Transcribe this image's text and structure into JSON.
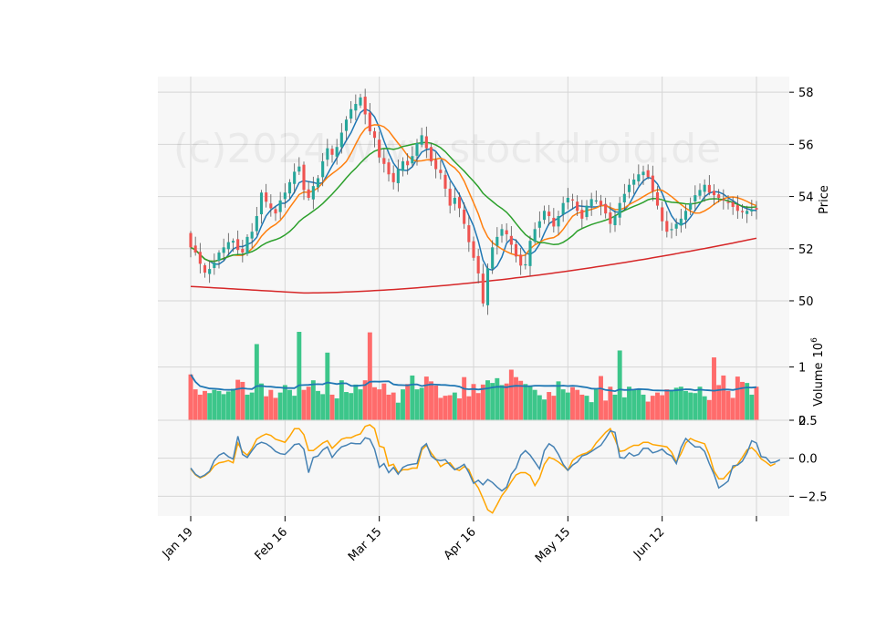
{
  "chart_data": {
    "type": "candlestick",
    "watermark": "(c)2024 www.stockdroid.de",
    "price_panel": {
      "ylabel": "Price",
      "ylim": [
        49.3,
        58.6
      ],
      "yticks": [
        50,
        52,
        54,
        56,
        58
      ],
      "moving_averages": [
        {
          "name": "MA5",
          "color": "#1f77b4"
        },
        {
          "name": "MA10",
          "color": "#ff7f0e"
        },
        {
          "name": "MA20",
          "color": "#2ca02c"
        },
        {
          "name": "MA100",
          "color": "#d62728"
        }
      ],
      "ma100_start": 50.55,
      "ma100_end": 52.4
    },
    "volume_panel": {
      "ylabel": "Volume",
      "yscale_label": "10",
      "yscale_exp": "6",
      "ylim": [
        0,
        1.9
      ],
      "yticks": [
        0,
        1
      ],
      "average_line_color": "#1f77b4",
      "up_color": "#26a69a",
      "down_color": "#ef5350"
    },
    "indicator_panel": {
      "ylim": [
        -3.8,
        2.5
      ],
      "yticks": [
        2.5,
        0.0,
        -2.5
      ],
      "ytick_labels": [
        "2.5",
        "0.0",
        "−2.5"
      ],
      "series": [
        {
          "name": "MACD",
          "color": "#4682b4"
        },
        {
          "name": "Signal",
          "color": "#ffa500"
        }
      ]
    },
    "x_axis": {
      "tick_labels": [
        "Jan 19",
        "Feb 16",
        "Mar 15",
        "Apr 16",
        "May 15",
        "Jun 12",
        ""
      ],
      "tick_index": [
        0,
        20,
        40,
        60,
        80,
        100,
        120
      ]
    },
    "closes": [
      52.05,
      51.85,
      51.42,
      51.08,
      51.22,
      51.47,
      51.85,
      52.05,
      52.25,
      52.3,
      51.95,
      51.85,
      52.45,
      52.65,
      53.25,
      54.15,
      53.8,
      53.55,
      53.35,
      53.85,
      54.15,
      54.55,
      54.95,
      55.15,
      54.25,
      53.95,
      54.4,
      54.7,
      55.35,
      55.85,
      55.6,
      55.9,
      56.45,
      56.95,
      57.35,
      57.55,
      57.8,
      57.15,
      56.5,
      56.25,
      55.5,
      55.25,
      54.85,
      54.55,
      55.05,
      55.35,
      55.2,
      55.55,
      56.05,
      56.35,
      55.85,
      55.35,
      55.05,
      54.9,
      54.3,
      53.65,
      53.95,
      53.55,
      52.95,
      52.25,
      51.65,
      51.05,
      49.9,
      51.25,
      52.05,
      52.45,
      52.75,
      52.55,
      52.15,
      51.7,
      51.35,
      51.4,
      52.3,
      52.75,
      53.05,
      53.45,
      53.25,
      52.85,
      53.25,
      53.75,
      53.95,
      53.85,
      53.45,
      53.15,
      53.65,
      53.9,
      53.85,
      53.65,
      53.35,
      52.95,
      53.25,
      53.75,
      54.1,
      54.45,
      54.65,
      54.85,
      54.95,
      54.75,
      54.2,
      53.65,
      53.05,
      52.65,
      52.75,
      52.95,
      53.15,
      53.45,
      53.75,
      54.05,
      54.25,
      54.45,
      54.15,
      54.05,
      53.95,
      53.85,
      53.75,
      53.6,
      53.45,
      53.4,
      53.45,
      53.5,
      53.5
    ],
    "volumes": [
      0.86,
      0.58,
      0.48,
      0.55,
      0.51,
      0.57,
      0.55,
      0.49,
      0.54,
      0.59,
      0.76,
      0.72,
      0.48,
      0.52,
      1.43,
      0.69,
      0.45,
      0.57,
      0.42,
      0.52,
      0.66,
      0.57,
      0.46,
      1.66,
      0.57,
      0.63,
      0.75,
      0.55,
      0.49,
      1.27,
      0.48,
      0.41,
      0.75,
      0.53,
      0.51,
      0.67,
      0.58,
      0.75,
      1.65,
      0.62,
      0.58,
      0.69,
      0.48,
      0.52,
      0.33,
      0.58,
      0.68,
      0.84,
      0.58,
      0.61,
      0.82,
      0.73,
      0.65,
      0.42,
      0.46,
      0.47,
      0.52,
      0.41,
      0.81,
      0.45,
      0.68,
      0.51,
      0.67,
      0.75,
      0.7,
      0.79,
      0.66,
      0.69,
      0.95,
      0.81,
      0.74,
      0.68,
      0.64,
      0.57,
      0.47,
      0.39,
      0.53,
      0.46,
      0.73,
      0.58,
      0.52,
      0.62,
      0.57,
      0.48,
      0.46,
      0.34,
      0.58,
      0.83,
      0.37,
      0.63,
      0.48,
      1.31,
      0.43,
      0.63,
      0.57,
      0.58,
      0.48,
      0.35,
      0.46,
      0.52,
      0.47,
      0.58,
      0.57,
      0.61,
      0.63,
      0.55,
      0.52,
      0.51,
      0.63,
      0.45,
      0.38,
      1.18,
      0.66,
      0.84,
      0.55,
      0.42,
      0.82,
      0.72,
      0.7,
      0.48,
      0.63
    ],
    "macd": [
      -0.65,
      -1.05,
      -1.25,
      -1.1,
      -0.85,
      -0.15,
      0.2,
      0.35,
      0.1,
      -0.05,
      1.45,
      0.25,
      0.05,
      0.5,
      0.9,
      1.05,
      0.95,
      0.75,
      0.45,
      0.3,
      0.25,
      0.55,
      0.9,
      0.95,
      0.6,
      -0.95,
      0.05,
      0.15,
      0.55,
      0.75,
      0.05,
      0.45,
      0.75,
      0.85,
      1.0,
      0.95,
      0.95,
      1.35,
      1.25,
      0.6,
      -0.6,
      -0.35,
      -0.95,
      -0.6,
      -1.05,
      -0.6,
      -0.45,
      -0.4,
      -0.35,
      0.7,
      0.95,
      0.15,
      -0.1,
      -0.15,
      -0.1,
      -0.45,
      -0.75,
      -0.6,
      -0.4,
      -0.95,
      -1.65,
      -1.45,
      -1.75,
      -1.4,
      -1.6,
      -1.9,
      -2.15,
      -1.9,
      -1.05,
      -0.65,
      0.2,
      0.5,
      0.2,
      -0.25,
      -0.7,
      0.5,
      0.95,
      0.75,
      0.25,
      -0.4,
      -0.8,
      -0.45,
      -0.25,
      0.15,
      0.25,
      0.45,
      0.65,
      0.85,
      1.3,
      1.8,
      1.7,
      0.05,
      0.0,
      0.35,
      0.15,
      0.25,
      0.65,
      0.65,
      0.35,
      0.45,
      0.6,
      0.3,
      0.15,
      -0.35,
      0.7,
      1.3,
      1.0,
      0.75,
      0.75,
      0.45,
      -0.35,
      -1.05,
      -1.95,
      -1.75,
      -1.5,
      -0.5,
      -0.45,
      -0.2,
      0.35,
      1.15,
      1.0,
      0.1,
      0.05,
      -0.3,
      -0.25,
      -0.1
    ],
    "signal": [
      -0.7,
      -1.1,
      -1.3,
      -1.15,
      -0.9,
      -0.5,
      -0.3,
      -0.25,
      -0.15,
      -0.3,
      1.0,
      0.45,
      0.2,
      0.65,
      1.25,
      1.45,
      1.6,
      1.5,
      1.25,
      1.15,
      1.05,
      1.45,
      1.95,
      1.95,
      1.55,
      0.5,
      0.5,
      0.75,
      1.0,
      1.15,
      0.65,
      0.95,
      1.25,
      1.35,
      1.35,
      1.5,
      1.6,
      2.1,
      2.2,
      1.95,
      0.8,
      0.7,
      -0.5,
      -0.4,
      -0.95,
      -0.75,
      -0.75,
      -0.65,
      -0.65,
      0.55,
      0.85,
      0.35,
      -0.05,
      -0.55,
      -0.35,
      -0.3,
      -0.7,
      -0.8,
      -0.55,
      -0.75,
      -1.5,
      -1.95,
      -2.65,
      -3.4,
      -3.6,
      -3.05,
      -2.45,
      -2.05,
      -1.55,
      -1.1,
      -0.95,
      -0.95,
      -1.15,
      -1.8,
      -1.3,
      -0.4,
      0.05,
      -0.05,
      -0.25,
      -0.5,
      -0.8,
      -0.15,
      0.1,
      0.25,
      0.35,
      0.55,
      1.0,
      1.35,
      1.7,
      1.95,
      1.25,
      0.45,
      0.5,
      0.7,
      0.85,
      0.85,
      1.05,
      1.05,
      0.9,
      0.85,
      0.8,
      0.75,
      0.4,
      -0.25,
      0.3,
      1.0,
      1.3,
      1.15,
      1.05,
      0.95,
      0.2,
      -0.85,
      -1.35,
      -1.35,
      -1.0,
      -0.65,
      -0.4,
      0.05,
      0.55,
      0.7,
      0.4,
      -0.05,
      -0.25,
      -0.5,
      -0.35
    ]
  }
}
